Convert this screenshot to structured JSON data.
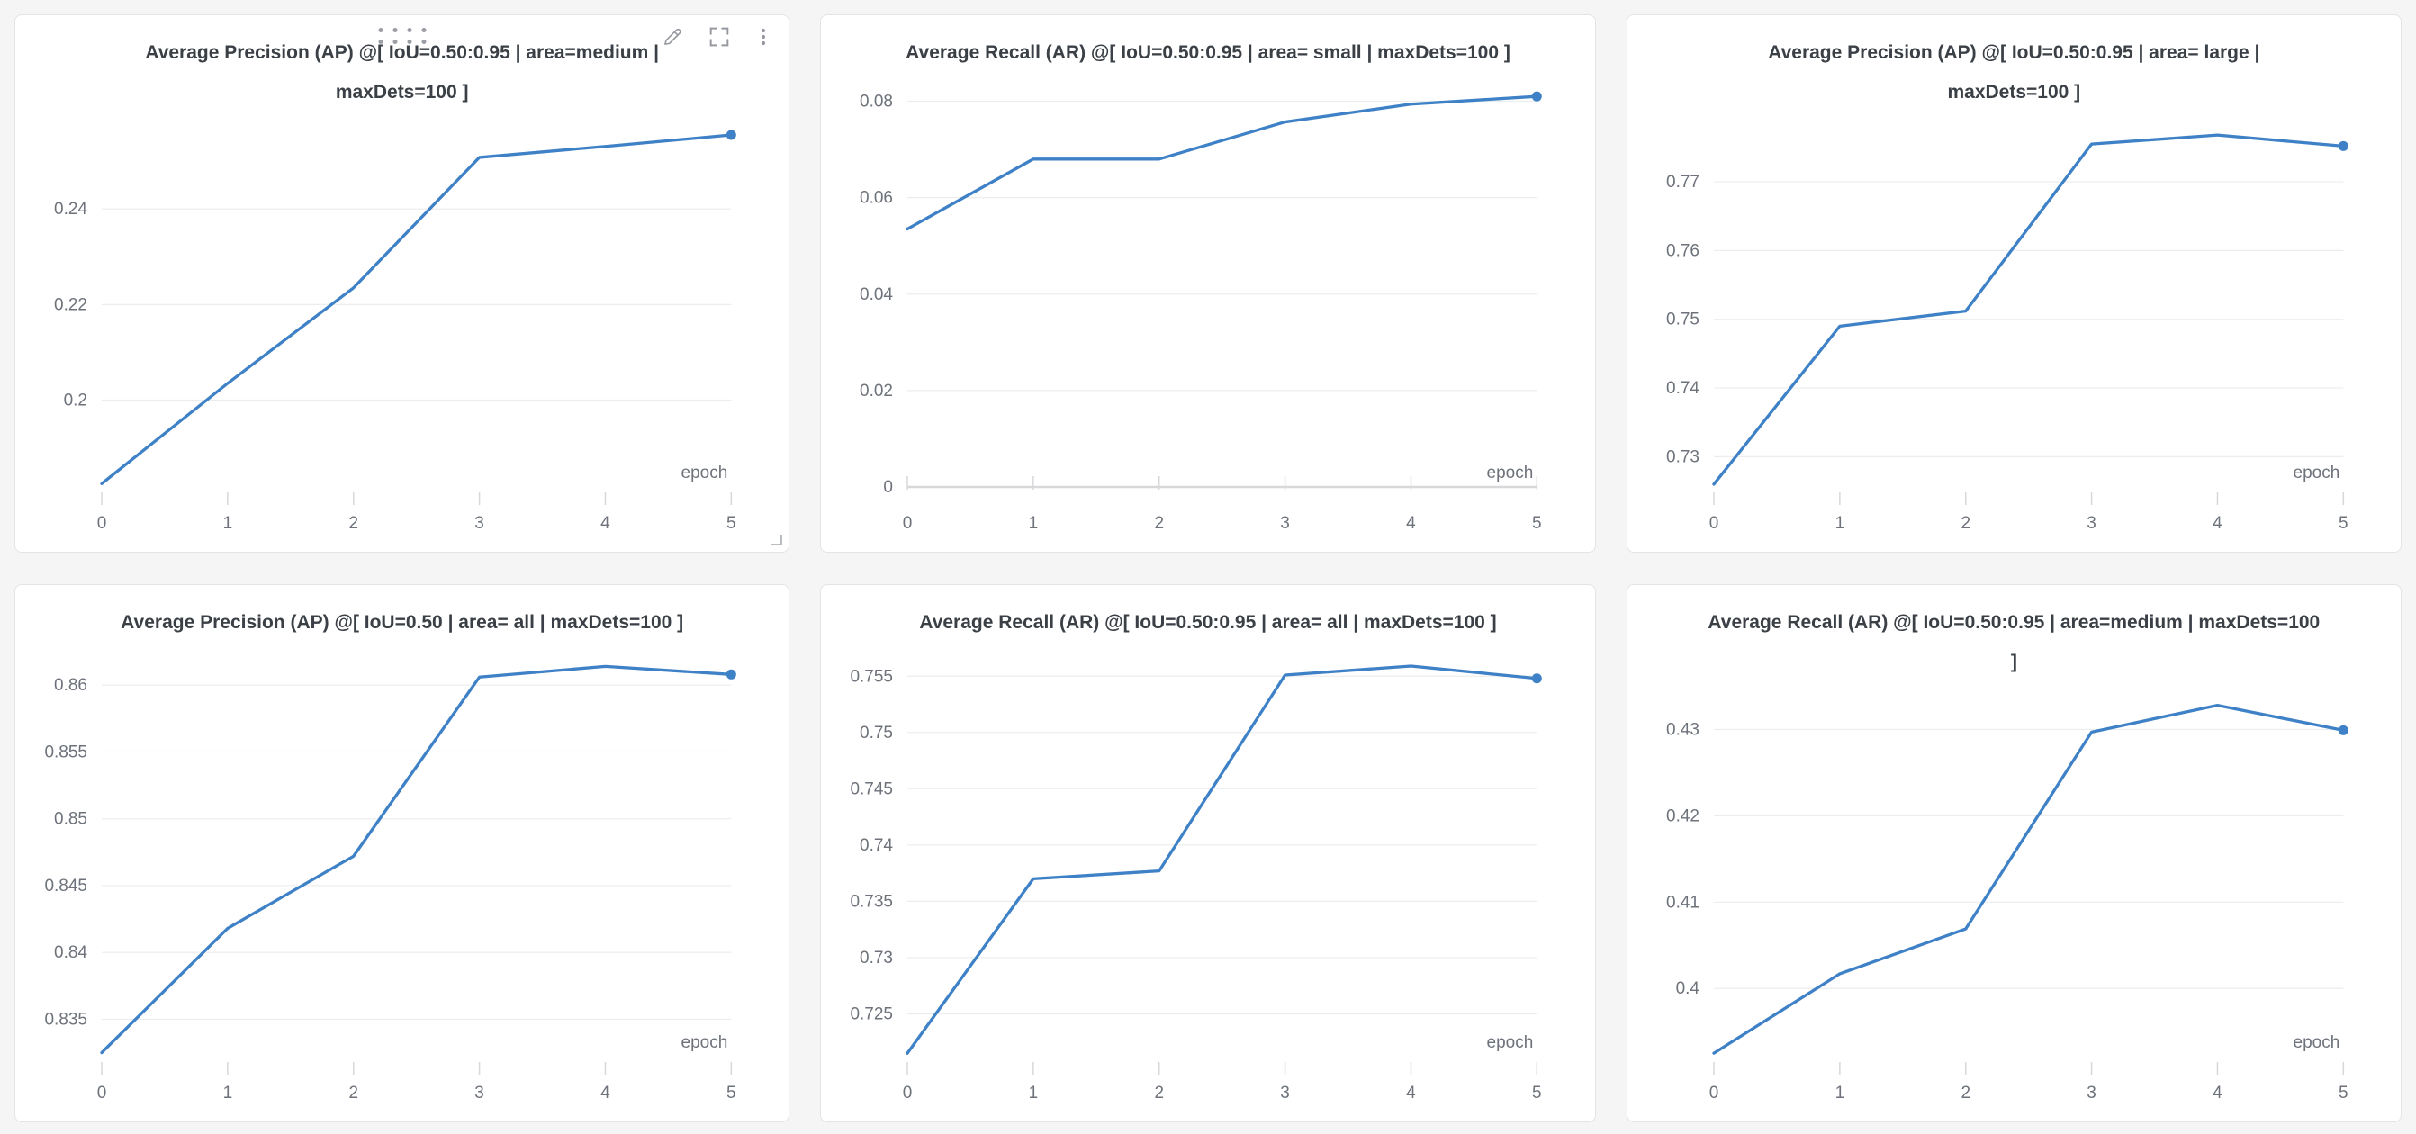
{
  "colors": {
    "accent_line": "#3e81c6",
    "page_bg": "#f5f5f6",
    "card_bg": "#ffffff",
    "card_border": "#e3e4e6",
    "title_text": "#3a4046",
    "tick_label": "#6d727b",
    "gridline": "#ebedee",
    "axis_line": "#d7d8da",
    "icon": "#96999f"
  },
  "panel_controls": {
    "drag_handle_icon": "drag-dots-grid",
    "edit_icon": "pencil",
    "fullscreen_icon": "expand-corners",
    "menu_icon": "kebab-vertical",
    "resize_icon": "corner-resize"
  },
  "chart_data": [
    {
      "type": "line",
      "title": "Average Precision (AP) @[ IoU=0.50:0.95 | area=medium | maxDets=100 ]",
      "xlabel": "epoch",
      "x": [
        0,
        1,
        2,
        3,
        4,
        5
      ],
      "values": [
        0.1825,
        0.2035,
        0.2235,
        0.2508,
        0.2531,
        0.2555
      ],
      "yticks": [
        0.2,
        0.22,
        0.24
      ],
      "ylim": [
        0.1818,
        0.2572
      ],
      "xlim": [
        0,
        5
      ],
      "grid": "horizontal",
      "legend": "none",
      "y_axis_line_at_zero": false,
      "endpoint_marker": true,
      "line_color": "#3e81c6"
    },
    {
      "type": "line",
      "title": "Average Recall (AR) @[ IoU=0.50:0.95 | area= small | maxDets=100 ]",
      "xlabel": "epoch",
      "x": [
        0,
        1,
        2,
        3,
        4,
        5
      ],
      "values": [
        0.0535,
        0.068,
        0.068,
        0.0757,
        0.0794,
        0.081
      ],
      "yticks": [
        0,
        0.02,
        0.04,
        0.06,
        0.08
      ],
      "ylim": [
        0,
        0.0829
      ],
      "xlim": [
        0,
        5
      ],
      "grid": "horizontal",
      "legend": "none",
      "y_axis_line_at_zero": true,
      "endpoint_marker": true,
      "line_color": "#3e81c6"
    },
    {
      "type": "line",
      "title": "Average Precision (AP) @[ IoU=0.50:0.95 | area= large | maxDets=100 ]",
      "xlabel": "epoch",
      "x": [
        0,
        1,
        2,
        3,
        4,
        5
      ],
      "values": [
        0.726,
        0.749,
        0.7512,
        0.7755,
        0.7768,
        0.7752
      ],
      "yticks": [
        0.73,
        0.74,
        0.75,
        0.76,
        0.77
      ],
      "ylim": [
        0.7256,
        0.778
      ],
      "xlim": [
        0,
        5
      ],
      "grid": "horizontal",
      "legend": "none",
      "y_axis_line_at_zero": false,
      "endpoint_marker": true,
      "line_color": "#3e81c6"
    },
    {
      "type": "line",
      "title": "Average Precision (AP) @[ IoU=0.50 | area= all | maxDets=100 ]",
      "xlabel": "epoch",
      "x": [
        0,
        1,
        2,
        3,
        4,
        5
      ],
      "values": [
        0.8325,
        0.8418,
        0.8472,
        0.8606,
        0.8614,
        0.8608
      ],
      "yticks": [
        0.835,
        0.84,
        0.845,
        0.85,
        0.855,
        0.86
      ],
      "ylim": [
        0.8322,
        0.8621
      ],
      "xlim": [
        0,
        5
      ],
      "grid": "horizontal",
      "legend": "none",
      "y_axis_line_at_zero": false,
      "endpoint_marker": true,
      "line_color": "#3e81c6"
    },
    {
      "type": "line",
      "title": "Average Recall (AR) @[ IoU=0.50:0.95 | area= all | maxDets=100 ]",
      "xlabel": "epoch",
      "x": [
        0,
        1,
        2,
        3,
        4,
        5
      ],
      "values": [
        0.7215,
        0.737,
        0.7377,
        0.7551,
        0.7559,
        0.7548
      ],
      "yticks": [
        0.725,
        0.73,
        0.735,
        0.74,
        0.745,
        0.75,
        0.755
      ],
      "ylim": [
        0.7212,
        0.7567
      ],
      "xlim": [
        0,
        5
      ],
      "grid": "horizontal",
      "legend": "none",
      "y_axis_line_at_zero": false,
      "endpoint_marker": true,
      "line_color": "#3e81c6"
    },
    {
      "type": "line",
      "title": "Average Recall (AR) @[ IoU=0.50:0.95 | area=medium | maxDets=100 ]",
      "xlabel": "epoch",
      "x": [
        0,
        1,
        2,
        3,
        4,
        5
      ],
      "values": [
        0.3925,
        0.4017,
        0.4069,
        0.4297,
        0.4328,
        0.4299
      ],
      "yticks": [
        0.4,
        0.41,
        0.42,
        0.43
      ],
      "ylim": [
        0.3921,
        0.4338
      ],
      "xlim": [
        0,
        5
      ],
      "grid": "horizontal",
      "legend": "none",
      "y_axis_line_at_zero": false,
      "endpoint_marker": true,
      "line_color": "#3e81c6"
    }
  ]
}
